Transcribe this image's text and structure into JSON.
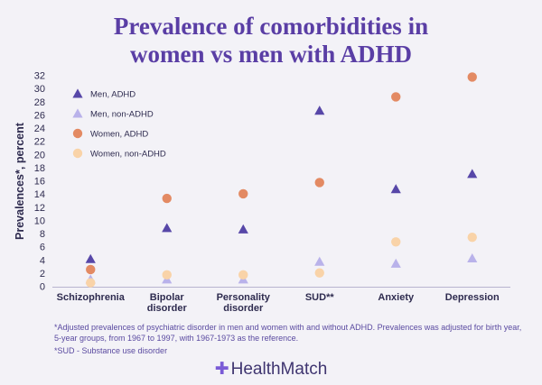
{
  "title_lines": [
    "Prevalence of comorbidities in",
    "women vs men with ADHD"
  ],
  "brand": {
    "mark": "✚",
    "name": "HealthMatch"
  },
  "footnotes": [
    "*Adjusted prevalences of psychiatric disorder in men and women with and without ADHD. Prevalences was adjusted for birth year, 5-year groups, from 1967 to 1997, with 1967-1973 as the reference.",
    "*SUD - Substance use disorder"
  ],
  "chart_data": {
    "type": "scatter",
    "title": "Prevalence of comorbidities in women vs men with ADHD",
    "xlabel": "",
    "ylabel": "Prevalences*, percent",
    "ylim": [
      0,
      32
    ],
    "yticks": [
      0,
      2,
      4,
      6,
      8,
      10,
      12,
      14,
      16,
      18,
      20,
      22,
      24,
      26,
      28,
      30,
      32
    ],
    "categories": [
      [
        "Schizophrenia"
      ],
      [
        "Bipolar",
        "disorder"
      ],
      [
        "Personality",
        "disorder"
      ],
      [
        "SUD**"
      ],
      [
        "Anxiety"
      ],
      [
        "Depression"
      ]
    ],
    "legend_position": "top-left",
    "series": [
      {
        "name": "Men, ADHD",
        "marker": "triangle",
        "color": "#5747a8",
        "values": [
          4.2,
          8.9,
          8.7,
          26.7,
          14.8,
          17.1
        ]
      },
      {
        "name": "Men, non-ADHD",
        "marker": "triangle",
        "color": "#b9b2ea",
        "values": [
          1.1,
          1.1,
          1.1,
          3.8,
          3.5,
          4.3
        ]
      },
      {
        "name": "Women, ADHD",
        "marker": "circle",
        "color": "#e38a63",
        "values": [
          2.6,
          13.4,
          14.1,
          15.8,
          28.8,
          31.8
        ]
      },
      {
        "name": "Women, non-ADHD",
        "marker": "circle",
        "color": "#f9d3a8",
        "values": [
          0.6,
          1.8,
          1.8,
          2.1,
          6.8,
          7.5
        ]
      }
    ]
  }
}
